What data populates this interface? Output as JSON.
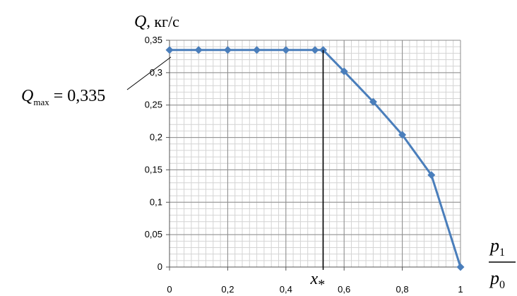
{
  "chart_data": {
    "type": "line",
    "title": "",
    "ylabel": {
      "symbol": "Q",
      "unit": ", кг/с"
    },
    "xlabel": {
      "numerator": "p",
      "numerator_sub": "1",
      "denominator": "p",
      "denominator_sub": "0"
    },
    "xlim": [
      0,
      1
    ],
    "ylim": [
      0,
      0.35
    ],
    "x_ticks": [
      "0",
      "0,2",
      "0,4",
      "0,6",
      "0,8",
      "1"
    ],
    "x_tick_values": [
      0,
      0.2,
      0.4,
      0.6,
      0.8,
      1
    ],
    "y_ticks": [
      "0",
      "0,05",
      "0,1",
      "0,15",
      "0,2",
      "0,25",
      "0,3",
      "0,35"
    ],
    "y_tick_values": [
      0,
      0.05,
      0.1,
      0.15,
      0.2,
      0.25,
      0.3,
      0.35
    ],
    "grid": true,
    "series": [
      {
        "x": [
          0,
          0.1,
          0.2,
          0.3,
          0.4,
          0.5,
          0.528,
          0.6,
          0.7,
          0.8,
          0.9,
          1.0
        ],
        "y": [
          0.335,
          0.335,
          0.335,
          0.335,
          0.335,
          0.335,
          0.335,
          0.302,
          0.255,
          0.204,
          0.142,
          0.0
        ],
        "color": "#4a7ebb"
      }
    ],
    "annotations": {
      "qmax": {
        "symbol": "Q",
        "sub": "max",
        "text": " = 0,335",
        "y": 0.335
      },
      "xstar": {
        "symbol": "x",
        "sub": "*",
        "x": 0.528
      }
    }
  }
}
